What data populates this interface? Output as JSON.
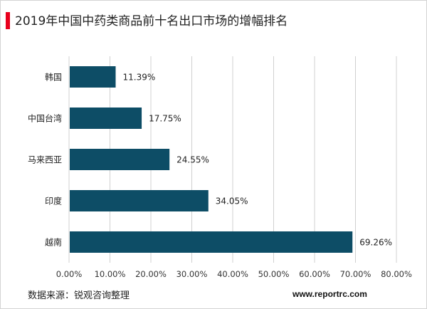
{
  "colors": {
    "accent": "#e8001c",
    "bar": "#0d4d66",
    "grid": "#d0d0d0"
  },
  "source_text": "数据来源：锐观咨询整理",
  "website_text": "www.reportrc.com",
  "chart_data": {
    "type": "bar",
    "orientation": "horizontal",
    "title": "2019年中国中药类商品前十名出口市场的增幅排名",
    "categories": [
      "韩国",
      "中国台湾",
      "马来西亚",
      "印度",
      "越南"
    ],
    "values": [
      11.39,
      17.75,
      24.55,
      34.05,
      69.26
    ],
    "data_labels": [
      "11.39%",
      "17.75%",
      "24.55%",
      "34.05%",
      "69.26%"
    ],
    "xlim": [
      0,
      80
    ],
    "x_ticks": [
      0,
      10,
      20,
      30,
      40,
      50,
      60,
      70,
      80
    ],
    "x_tick_labels": [
      "0.00%",
      "10.00%",
      "20.00%",
      "30.00%",
      "40.00%",
      "50.00%",
      "60.00%",
      "70.00%",
      "80.00%"
    ],
    "grid": "vertical",
    "legend": "none"
  }
}
